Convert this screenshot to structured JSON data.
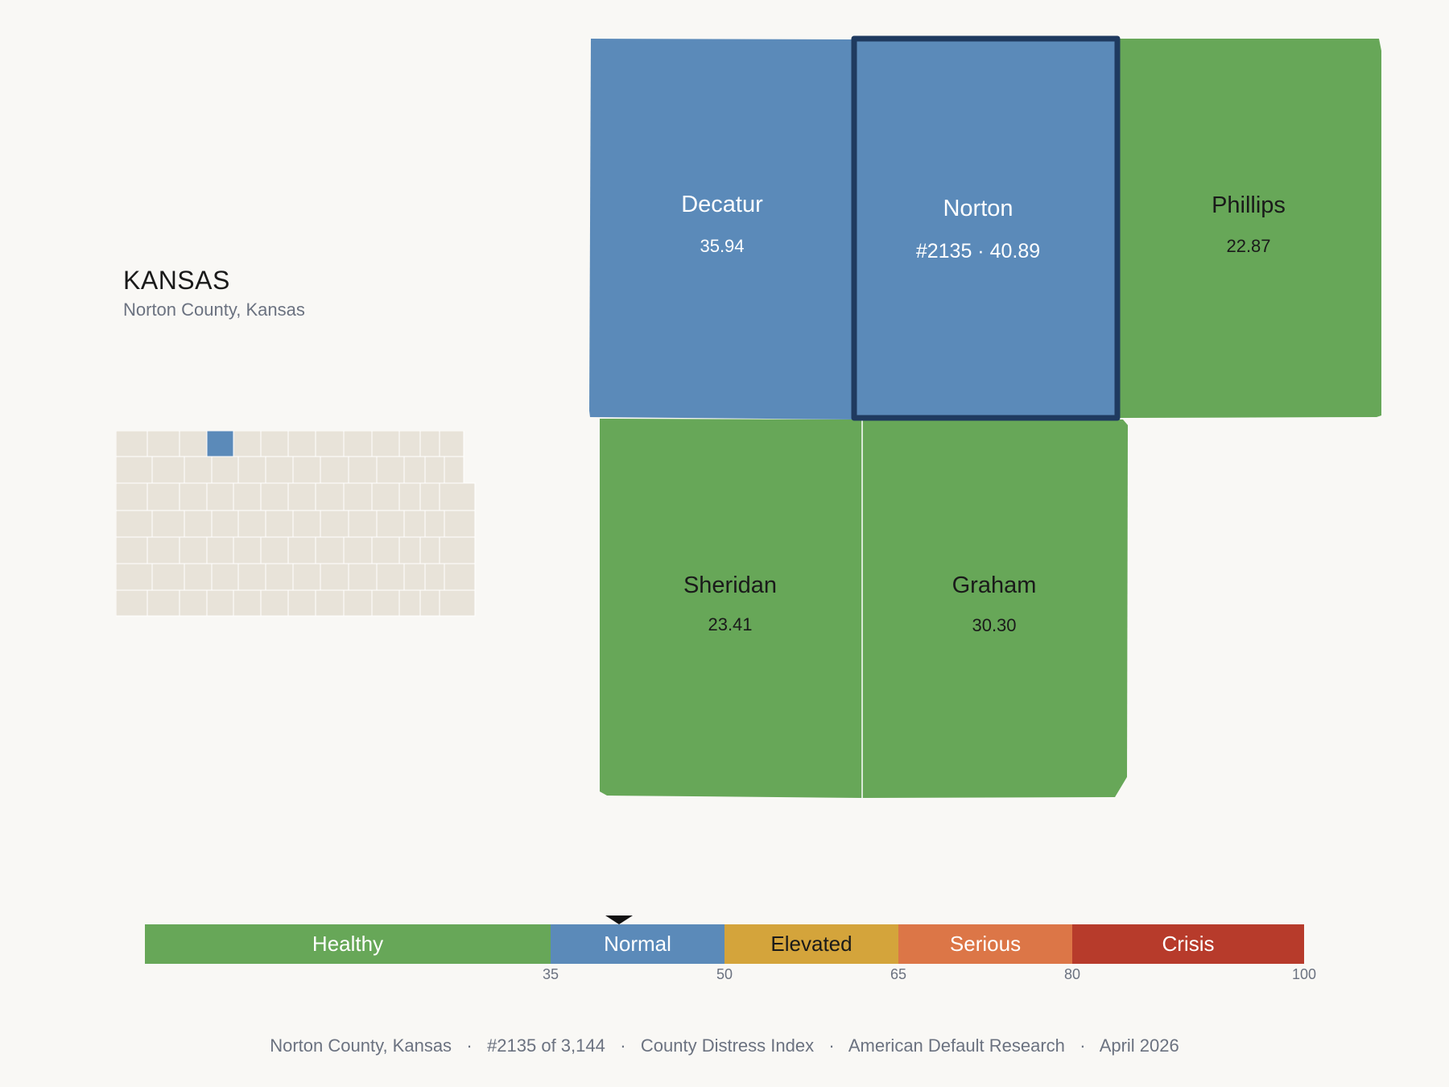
{
  "header": {
    "state": "KANSAS",
    "subtitle": "Norton County, Kansas"
  },
  "map": {
    "counties": [
      {
        "name": "Decatur",
        "value_label": "35.94",
        "category": "Normal",
        "highlight": false
      },
      {
        "name": "Norton",
        "value_label": "#2135 · 40.89",
        "category": "Normal",
        "highlight": true
      },
      {
        "name": "Phillips",
        "value_label": "22.87",
        "category": "Healthy",
        "highlight": false
      },
      {
        "name": "Sheridan",
        "value_label": "23.41",
        "category": "Healthy",
        "highlight": false
      },
      {
        "name": "Graham",
        "value_label": "30.30",
        "category": "Healthy",
        "highlight": false
      }
    ],
    "colors": {
      "Healthy": "#67a758",
      "Normal": "#5b8ab9",
      "highlight_border": "#1f3a5f",
      "minimap_fill": "#e8e3d9",
      "minimap_border": "#ffffff"
    }
  },
  "scale": {
    "min": 0,
    "max": 100,
    "current_value": 40.89,
    "segments": [
      {
        "label": "Healthy",
        "from": 0,
        "to": 35,
        "color": "#67a758",
        "text_color": "#ffffff"
      },
      {
        "label": "Normal",
        "from": 35,
        "to": 50,
        "color": "#5b8ab9",
        "text_color": "#ffffff"
      },
      {
        "label": "Elevated",
        "from": 50,
        "to": 65,
        "color": "#d4a43b",
        "text_color": "#1a1a1a"
      },
      {
        "label": "Serious",
        "from": 65,
        "to": 80,
        "color": "#dc7647",
        "text_color": "#ffffff"
      },
      {
        "label": "Crisis",
        "from": 80,
        "to": 100,
        "color": "#b73b2b",
        "text_color": "#ffffff"
      }
    ],
    "ticks": [
      "35",
      "50",
      "65",
      "80",
      "100"
    ]
  },
  "footer": {
    "items": [
      "Norton County, Kansas",
      "#2135 of 3,144",
      "County Distress Index",
      "American Default Research",
      "April 2026"
    ],
    "separator": "·"
  }
}
